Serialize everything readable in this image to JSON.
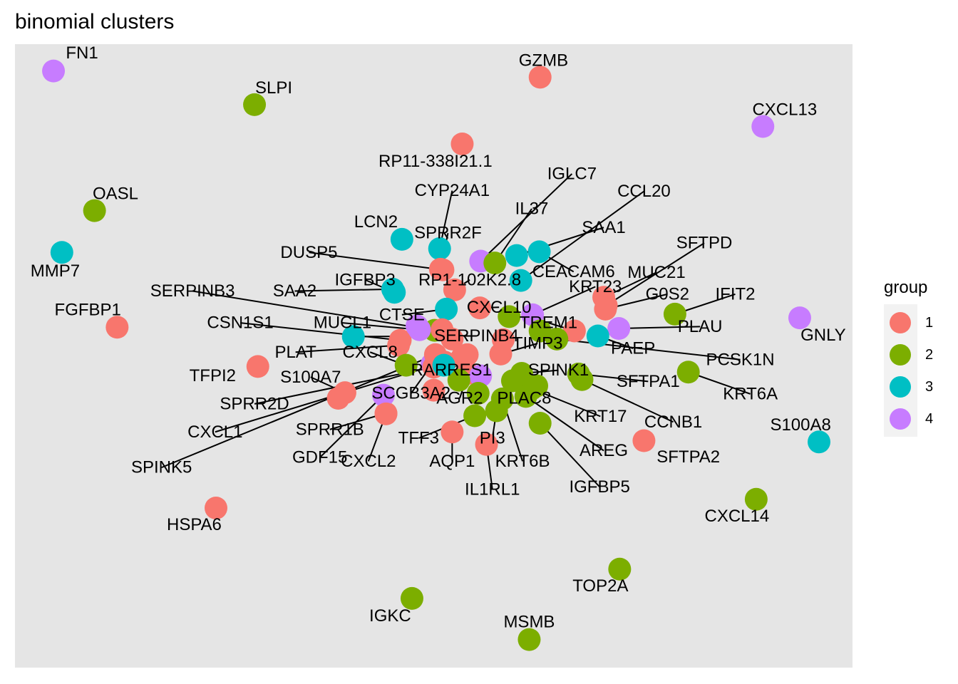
{
  "chart_data": {
    "type": "scatter",
    "title": "binomial clusters",
    "xlabel": "",
    "ylabel": "",
    "grid": false,
    "legend": {
      "title": "group",
      "placement": "right",
      "entries": [
        "1",
        "2",
        "3",
        "4"
      ]
    },
    "group_colors": {
      "1": "#F8766D",
      "2": "#7CAE00",
      "3": "#00BFC4",
      "4": "#C77CFF"
    },
    "xlim": [
      0,
      1
    ],
    "ylim": [
      0,
      1
    ],
    "points": [
      {
        "label": "FN1",
        "group": "4",
        "x": 0.046,
        "y": 0.957,
        "lx": 0.08,
        "ly": 0.986,
        "line": false
      },
      {
        "label": "SLPI",
        "group": "2",
        "x": 0.286,
        "y": 0.903,
        "lx": 0.309,
        "ly": 0.93,
        "line": false
      },
      {
        "label": "GZMB",
        "group": "1",
        "x": 0.627,
        "y": 0.947,
        "lx": 0.631,
        "ly": 0.974,
        "line": false
      },
      {
        "label": "CXCL13",
        "group": "4",
        "x": 0.893,
        "y": 0.868,
        "lx": 0.919,
        "ly": 0.895,
        "line": false
      },
      {
        "label": "RP11-338I21.1",
        "group": "1",
        "x": 0.534,
        "y": 0.84,
        "lx": 0.502,
        "ly": 0.812,
        "line": false
      },
      {
        "label": "OASL",
        "group": "2",
        "x": 0.095,
        "y": 0.733,
        "lx": 0.12,
        "ly": 0.76,
        "line": false
      },
      {
        "label": "MMP7",
        "group": "3",
        "x": 0.056,
        "y": 0.666,
        "lx": 0.048,
        "ly": 0.636,
        "line": false
      },
      {
        "label": "FGFBP1",
        "group": "1",
        "x": 0.122,
        "y": 0.546,
        "lx": 0.087,
        "ly": 0.574,
        "line": false
      },
      {
        "label": "GNLY",
        "group": "4",
        "x": 0.937,
        "y": 0.561,
        "lx": 0.965,
        "ly": 0.533,
        "line": false
      },
      {
        "label": "S100A8",
        "group": "3",
        "x": 0.96,
        "y": 0.362,
        "lx": 0.938,
        "ly": 0.389,
        "line": false
      },
      {
        "label": "SFTPA2",
        "group": "1",
        "x": 0.751,
        "y": 0.364,
        "lx": 0.804,
        "ly": 0.338,
        "line": false
      },
      {
        "label": "CXCL14",
        "group": "2",
        "x": 0.885,
        "y": 0.27,
        "lx": 0.862,
        "ly": 0.243,
        "line": false
      },
      {
        "label": "HSPA6",
        "group": "1",
        "x": 0.24,
        "y": 0.256,
        "lx": 0.214,
        "ly": 0.229,
        "line": false
      },
      {
        "label": "TOP2A",
        "group": "2",
        "x": 0.722,
        "y": 0.158,
        "lx": 0.699,
        "ly": 0.131,
        "line": false
      },
      {
        "label": "IGKC",
        "group": "2",
        "x": 0.474,
        "y": 0.111,
        "lx": 0.448,
        "ly": 0.083,
        "line": false
      },
      {
        "label": "MSMB",
        "group": "2",
        "x": 0.614,
        "y": 0.045,
        "lx": 0.614,
        "ly": 0.073,
        "line": false
      },
      {
        "label": "TFPI2",
        "group": "1",
        "x": 0.29,
        "y": 0.483,
        "lx": 0.236,
        "ly": 0.468,
        "line": false
      },
      {
        "label": "LCN2",
        "group": "3",
        "x": 0.462,
        "y": 0.687,
        "lx": 0.431,
        "ly": 0.715,
        "line": false
      },
      {
        "label": "CYP24A1",
        "group": "3",
        "x": 0.507,
        "y": 0.672,
        "lx": 0.522,
        "ly": 0.765,
        "line": true
      },
      {
        "label": "SPRR2F",
        "group": "1",
        "x": 0.508,
        "y": 0.639,
        "lx": 0.517,
        "ly": 0.697,
        "line": true
      },
      {
        "label": "IGLC7",
        "group": "4",
        "x": 0.556,
        "y": 0.652,
        "lx": 0.665,
        "ly": 0.792,
        "line": true
      },
      {
        "label": "IL37",
        "group": "2",
        "x": 0.573,
        "y": 0.649,
        "lx": 0.617,
        "ly": 0.736,
        "line": true
      },
      {
        "label": "CCL20",
        "group": "3",
        "x": 0.604,
        "y": 0.621,
        "lx": 0.751,
        "ly": 0.764,
        "line": true
      },
      {
        "label": "SAA1",
        "group": "3",
        "x": 0.599,
        "y": 0.661,
        "lx": 0.703,
        "ly": 0.706,
        "line": true
      },
      {
        "label": "DUSP5",
        "group": "1",
        "x": 0.511,
        "y": 0.638,
        "lx": 0.351,
        "ly": 0.666,
        "line": true
      },
      {
        "label": "CEACAM6",
        "group": "3",
        "x": 0.626,
        "y": 0.667,
        "lx": 0.667,
        "ly": 0.635,
        "line": true
      },
      {
        "label": "SFTPD",
        "group": "1",
        "x": 0.706,
        "y": 0.581,
        "lx": 0.823,
        "ly": 0.681,
        "line": true
      },
      {
        "label": "RP1-102K2.8",
        "group": "1",
        "x": 0.525,
        "y": 0.606,
        "lx": 0.543,
        "ly": 0.622,
        "line": true
      },
      {
        "label": "IGFBP3",
        "group": "3",
        "x": 0.453,
        "y": 0.602,
        "lx": 0.418,
        "ly": 0.622,
        "line": true
      },
      {
        "label": "MUC21",
        "group": "1",
        "x": 0.703,
        "y": 0.594,
        "lx": 0.766,
        "ly": 0.634,
        "line": true
      },
      {
        "label": "SERPINB3",
        "group": "2",
        "x": 0.501,
        "y": 0.541,
        "lx": 0.212,
        "ly": 0.604,
        "line": true
      },
      {
        "label": "SAA2",
        "group": "3",
        "x": 0.451,
        "y": 0.607,
        "lx": 0.334,
        "ly": 0.604,
        "line": true
      },
      {
        "label": "CXCL10",
        "group": "1",
        "x": 0.555,
        "y": 0.577,
        "lx": 0.578,
        "ly": 0.578,
        "line": true
      },
      {
        "label": "KRT23",
        "group": "4",
        "x": 0.618,
        "y": 0.566,
        "lx": 0.693,
        "ly": 0.611,
        "line": true
      },
      {
        "label": "G0S2",
        "group": "1",
        "x": 0.705,
        "y": 0.575,
        "lx": 0.779,
        "ly": 0.599,
        "line": true
      },
      {
        "label": "IFIT2",
        "group": "2",
        "x": 0.788,
        "y": 0.567,
        "lx": 0.86,
        "ly": 0.599,
        "line": true
      },
      {
        "label": "CTSE",
        "group": "3",
        "x": 0.515,
        "y": 0.575,
        "lx": 0.462,
        "ly": 0.566,
        "line": true
      },
      {
        "label": "TREM1",
        "group": "1",
        "x": 0.668,
        "y": 0.54,
        "lx": 0.637,
        "ly": 0.553,
        "line": true
      },
      {
        "label": "CSN1S1",
        "group": "1",
        "x": 0.46,
        "y": 0.525,
        "lx": 0.269,
        "ly": 0.553,
        "line": true
      },
      {
        "label": "MUCL1",
        "group": "4",
        "x": 0.483,
        "y": 0.542,
        "lx": 0.391,
        "ly": 0.553,
        "line": true
      },
      {
        "label": "PLAU",
        "group": "4",
        "x": 0.721,
        "y": 0.544,
        "lx": 0.818,
        "ly": 0.547,
        "line": true
      },
      {
        "label": "SERPINB4",
        "group": "3",
        "x": 0.404,
        "y": 0.531,
        "lx": 0.551,
        "ly": 0.532,
        "line": true
      },
      {
        "label": "PAEP",
        "group": "3",
        "x": 0.696,
        "y": 0.532,
        "lx": 0.738,
        "ly": 0.512,
        "line": true
      },
      {
        "label": "PLAT",
        "group": "1",
        "x": 0.458,
        "y": 0.517,
        "lx": 0.335,
        "ly": 0.506,
        "line": true
      },
      {
        "label": "CXCL8",
        "group": "2",
        "x": 0.467,
        "y": 0.485,
        "lx": 0.424,
        "ly": 0.506,
        "line": true
      },
      {
        "label": "TIMP3",
        "group": "1",
        "x": 0.58,
        "y": 0.503,
        "lx": 0.624,
        "ly": 0.52,
        "line": true
      },
      {
        "label": "PCSK1N",
        "group": "2",
        "x": 0.647,
        "y": 0.527,
        "lx": 0.866,
        "ly": 0.494,
        "line": true
      },
      {
        "label": "KRT6A",
        "group": "2",
        "x": 0.804,
        "y": 0.474,
        "lx": 0.878,
        "ly": 0.439,
        "line": true
      },
      {
        "label": "S100A7",
        "group": "1",
        "x": 0.394,
        "y": 0.441,
        "lx": 0.353,
        "ly": 0.466,
        "line": true
      },
      {
        "label": "RARRES1",
        "group": "1",
        "x": 0.54,
        "y": 0.502,
        "lx": 0.521,
        "ly": 0.477,
        "line": true
      },
      {
        "label": "SPINK1",
        "group": "2",
        "x": 0.605,
        "y": 0.472,
        "lx": 0.649,
        "ly": 0.477,
        "line": true
      },
      {
        "label": "SFTPA1",
        "group": "2",
        "x": 0.673,
        "y": 0.471,
        "lx": 0.756,
        "ly": 0.459,
        "line": true
      },
      {
        "label": "SCGB3A2",
        "group": "4",
        "x": 0.498,
        "y": 0.487,
        "lx": 0.473,
        "ly": 0.44,
        "line": true
      },
      {
        "label": "AGR2",
        "group": "1",
        "x": 0.541,
        "y": 0.472,
        "lx": 0.531,
        "ly": 0.432,
        "line": true
      },
      {
        "label": "PLAC8",
        "group": "2",
        "x": 0.617,
        "y": 0.447,
        "lx": 0.608,
        "ly": 0.432,
        "line": true
      },
      {
        "label": "KRT17",
        "group": "2",
        "x": 0.594,
        "y": 0.46,
        "lx": 0.699,
        "ly": 0.403,
        "line": true
      },
      {
        "label": "CCNB1",
        "group": "2",
        "x": 0.677,
        "y": 0.462,
        "lx": 0.786,
        "ly": 0.394,
        "line": true
      },
      {
        "label": "SPRR2D",
        "group": "1",
        "x": 0.5,
        "y": 0.482,
        "lx": 0.286,
        "ly": 0.423,
        "line": true
      },
      {
        "label": "SPRR1B",
        "group": "1",
        "x": 0.443,
        "y": 0.408,
        "lx": 0.376,
        "ly": 0.382,
        "line": true
      },
      {
        "label": "CXCL1",
        "group": "1",
        "x": 0.513,
        "y": 0.49,
        "lx": 0.239,
        "ly": 0.378,
        "line": true
      },
      {
        "label": "TFF3",
        "group": "2",
        "x": 0.549,
        "y": 0.404,
        "lx": 0.482,
        "ly": 0.368,
        "line": true
      },
      {
        "label": "PI3",
        "group": "2",
        "x": 0.575,
        "y": 0.412,
        "lx": 0.57,
        "ly": 0.368,
        "line": true
      },
      {
        "label": "AREG",
        "group": "2",
        "x": 0.61,
        "y": 0.435,
        "lx": 0.703,
        "ly": 0.348,
        "line": true
      },
      {
        "label": "GDF15",
        "group": "4",
        "x": 0.44,
        "y": 0.437,
        "lx": 0.364,
        "ly": 0.337,
        "line": true
      },
      {
        "label": "CXCL2",
        "group": "1",
        "x": 0.443,
        "y": 0.407,
        "lx": 0.422,
        "ly": 0.331,
        "line": true
      },
      {
        "label": "AQP1",
        "group": "1",
        "x": 0.522,
        "y": 0.378,
        "lx": 0.522,
        "ly": 0.331,
        "line": true
      },
      {
        "label": "KRT6B",
        "group": "2",
        "x": 0.582,
        "y": 0.431,
        "lx": 0.606,
        "ly": 0.331,
        "line": true
      },
      {
        "label": "SPINK5",
        "group": "1",
        "x": 0.502,
        "y": 0.502,
        "lx": 0.175,
        "ly": 0.321,
        "line": true
      },
      {
        "label": "IL1RL1",
        "group": "1",
        "x": 0.563,
        "y": 0.358,
        "lx": 0.57,
        "ly": 0.286,
        "line": true
      },
      {
        "label": "IGFBP5",
        "group": "2",
        "x": 0.627,
        "y": 0.392,
        "lx": 0.698,
        "ly": 0.29,
        "line": true
      },
      {
        "label": "",
        "group": "1",
        "x": 0.51,
        "y": 0.542,
        "line": false
      },
      {
        "label": "",
        "group": "1",
        "x": 0.522,
        "y": 0.527,
        "line": false
      },
      {
        "label": "",
        "group": "1",
        "x": 0.583,
        "y": 0.526,
        "line": false
      },
      {
        "label": "",
        "group": "2",
        "x": 0.59,
        "y": 0.563,
        "line": false
      },
      {
        "label": "",
        "group": "2",
        "x": 0.627,
        "y": 0.54,
        "line": false
      },
      {
        "label": "",
        "group": "1",
        "x": 0.534,
        "y": 0.498,
        "line": false
      },
      {
        "label": "",
        "group": "4",
        "x": 0.556,
        "y": 0.468,
        "line": false
      },
      {
        "label": "",
        "group": "2",
        "x": 0.623,
        "y": 0.452,
        "line": false
      },
      {
        "label": "",
        "group": "2",
        "x": 0.53,
        "y": 0.461,
        "line": false
      },
      {
        "label": "",
        "group": "1",
        "x": 0.5,
        "y": 0.445,
        "line": false
      },
      {
        "label": "",
        "group": "2",
        "x": 0.553,
        "y": 0.44,
        "line": false
      },
      {
        "label": "",
        "group": "4",
        "x": 0.48,
        "y": 0.548,
        "line": false
      },
      {
        "label": "",
        "group": "3",
        "x": 0.512,
        "y": 0.485,
        "line": false
      },
      {
        "label": "",
        "group": "1",
        "x": 0.386,
        "y": 0.432,
        "line": false
      }
    ]
  }
}
